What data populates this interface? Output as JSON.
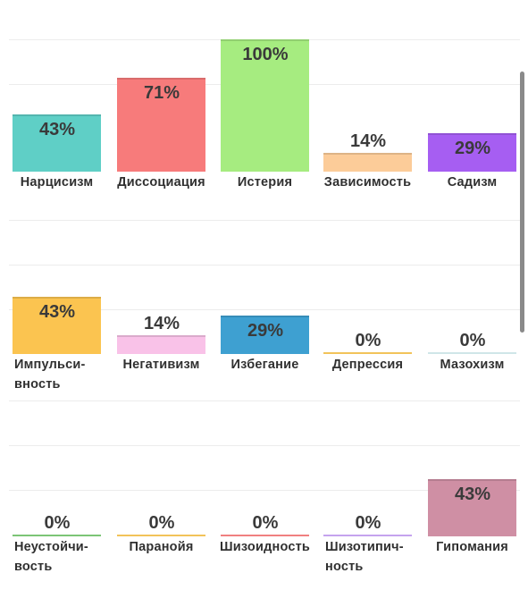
{
  "chart_data": {
    "type": "bar",
    "unit": "%",
    "ylim": [
      0,
      100
    ],
    "grid": true,
    "rows": [
      {
        "categories": [
          "Нарцисизм",
          "Диссоциация",
          "Истерия",
          "Зависимость",
          "Садизм"
        ],
        "values": [
          43,
          71,
          100,
          14,
          29
        ],
        "value_labels": [
          "43%",
          "71%",
          "100%",
          "14%",
          "29%"
        ],
        "colors": [
          "#5fcfc6",
          "#f77b7b",
          "#a6ec80",
          "#fccc99",
          "#a65ef2"
        ]
      },
      {
        "categories": [
          "Импульси-вность",
          "Негативизм",
          "Избегание",
          "Депрессия",
          "Мазохизм"
        ],
        "values": [
          43,
          14,
          29,
          0,
          0
        ],
        "value_labels": [
          "43%",
          "14%",
          "29%",
          "0%",
          "0%"
        ],
        "colors": [
          "#fbc450",
          "#f9c2e8",
          "#3ea0d1",
          "#f2c35a",
          "#cfe6e8"
        ]
      },
      {
        "categories": [
          "Неустойчи-вость",
          "Паранойя",
          "Шизоидность",
          "Шизотипич-ность",
          "Гипомания"
        ],
        "values": [
          0,
          0,
          0,
          0,
          43
        ],
        "value_labels": [
          "0%",
          "0%",
          "0%",
          "0%",
          "43%"
        ],
        "colors": [
          "#7cc576",
          "#f2c35a",
          "#f08080",
          "#c5a3ee",
          "#cf8fa4"
        ]
      }
    ]
  }
}
